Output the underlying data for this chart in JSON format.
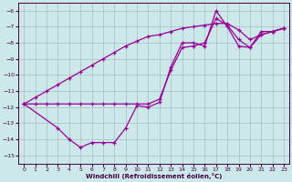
{
  "xlabel": "Windchill (Refroidissement éolien,°C)",
  "bg_color": "#cce8e8",
  "grid_color": "#aabbcc",
  "line_color": "#990099",
  "xlim": [
    -0.5,
    23.5
  ],
  "ylim": [
    -15.5,
    -5.5
  ],
  "xticks": [
    0,
    1,
    2,
    3,
    4,
    5,
    6,
    7,
    8,
    9,
    10,
    11,
    12,
    13,
    14,
    15,
    16,
    17,
    18,
    19,
    20,
    21,
    22,
    23
  ],
  "yticks": [
    -15,
    -14,
    -13,
    -12,
    -11,
    -10,
    -9,
    -8,
    -7,
    -6
  ],
  "line1_x": [
    0,
    1,
    2,
    3,
    4,
    5,
    6,
    7,
    8,
    9,
    10,
    11,
    12,
    13,
    14,
    15,
    16,
    17,
    18,
    19,
    20,
    21,
    22,
    23
  ],
  "line1_y": [
    -11.8,
    -11.8,
    -11.8,
    -11.8,
    -11.8,
    -11.8,
    -11.8,
    -11.8,
    -11.8,
    -11.8,
    -11.8,
    -11.8,
    -11.5,
    -9.7,
    -8.3,
    -8.2,
    -8.0,
    -6.5,
    -6.9,
    -7.8,
    -8.3,
    -7.5,
    -7.3,
    -7.1
  ],
  "line2_x": [
    0,
    3,
    4,
    5,
    6,
    7,
    8,
    9,
    10,
    11,
    12,
    13,
    14,
    15,
    16,
    17,
    18,
    19,
    20,
    21,
    22,
    23
  ],
  "line2_y": [
    -11.8,
    -13.3,
    -14.0,
    -14.5,
    -14.2,
    -14.2,
    -14.2,
    -13.3,
    -11.9,
    -12.0,
    -11.7,
    -9.5,
    -8.0,
    -8.0,
    -8.2,
    -6.0,
    -7.0,
    -8.2,
    -8.3,
    -7.3,
    -7.3,
    -7.1
  ],
  "line3_x": [
    0,
    1,
    2,
    3,
    4,
    5,
    6,
    7,
    8,
    9,
    10,
    11,
    12,
    13,
    14,
    15,
    16,
    17,
    18,
    19,
    20,
    21,
    22,
    23
  ],
  "line3_y": [
    -11.8,
    -11.4,
    -11.0,
    -10.6,
    -10.2,
    -9.8,
    -9.4,
    -9.0,
    -8.6,
    -8.2,
    -7.9,
    -7.6,
    -7.5,
    -7.3,
    -7.1,
    -7.0,
    -6.9,
    -6.8,
    -6.8,
    -7.2,
    -7.8,
    -7.5,
    -7.3,
    -7.1
  ]
}
